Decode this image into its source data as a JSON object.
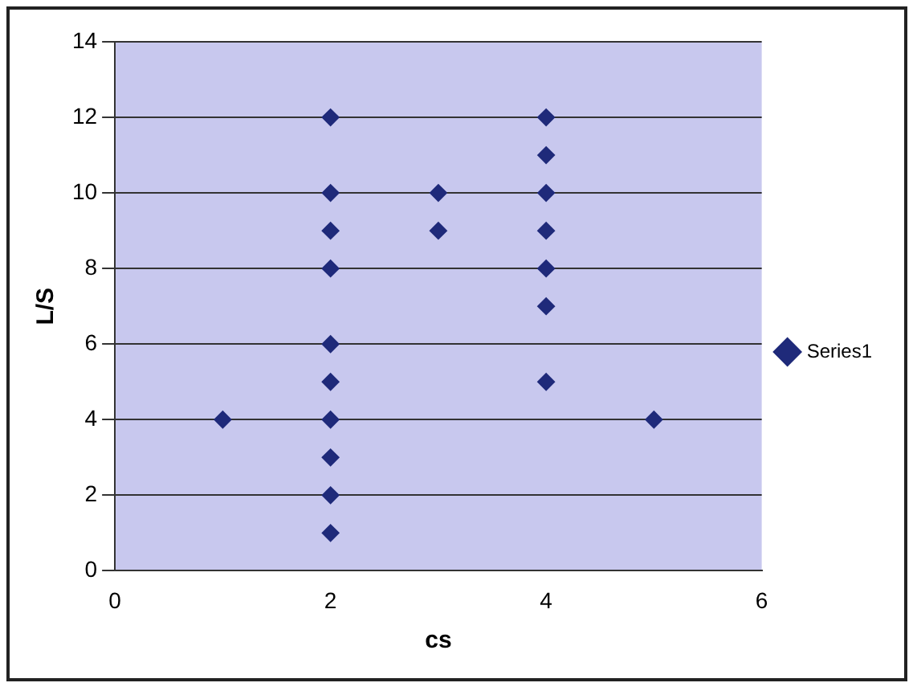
{
  "chart_data": {
    "type": "scatter",
    "xlabel": "cs",
    "ylabel": "L/S",
    "series": [
      {
        "name": "Series1",
        "color": "#1f2a7a",
        "x": [
          1,
          2,
          2,
          2,
          2,
          2,
          2,
          2,
          2,
          2,
          2,
          3,
          3,
          4,
          4,
          4,
          4,
          4,
          4,
          4,
          5
        ],
        "values": [
          4,
          12,
          10,
          9,
          8,
          6,
          5,
          4,
          3,
          2,
          1,
          10,
          9,
          12,
          11,
          10,
          9,
          8,
          7,
          5,
          4
        ]
      }
    ],
    "xlim": [
      0,
      6
    ],
    "xticks": [
      0,
      2,
      4,
      6
    ],
    "ylim": [
      0,
      14
    ],
    "yticks": [
      0,
      2,
      4,
      6,
      8,
      10,
      12,
      14
    ],
    "grid": "y",
    "legend": "right",
    "marker": "diamond"
  }
}
